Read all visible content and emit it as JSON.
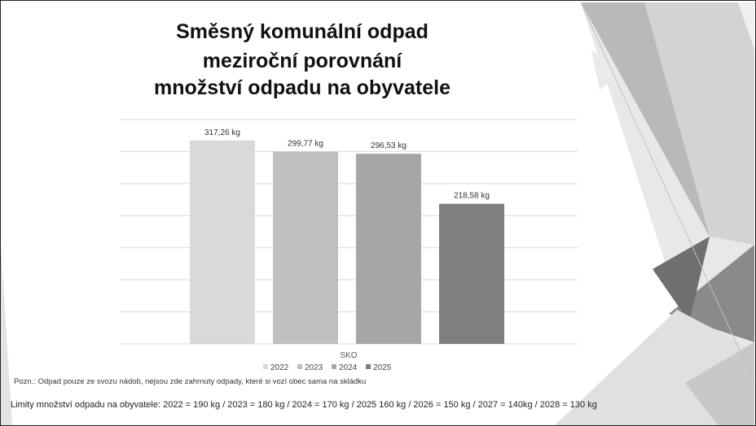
{
  "title_lines": [
    "Směsný komunální odpad",
    "meziroční porovnání",
    "množství odpadu na obyvatele"
  ],
  "colors": {
    "bar_2022": "#d9d9d9",
    "bar_2023": "#bfbfbf",
    "bar_2024": "#a6a6a6",
    "bar_2025": "#7f7f7f",
    "gridline": "#d9d9d9"
  },
  "chart_data": {
    "type": "bar",
    "xlabel": "SKO",
    "ylim": [
      0,
      350
    ],
    "grid": true,
    "legend_position": "bottom",
    "series": [
      {
        "name": "2022",
        "value": 317.26,
        "label": "317,26 kg"
      },
      {
        "name": "2023",
        "value": 299.77,
        "label": "299,77 kg"
      },
      {
        "name": "2024",
        "value": 296.53,
        "label": "296,53 kg"
      },
      {
        "name": "2025",
        "value": 218.58,
        "label": "218,58 kg"
      }
    ]
  },
  "note": "Pozn.: Odpad pouze ze svozu nádob, nejsou zde zahrnuty odpady, které si vozí obec sama na skládku",
  "limits": "Limity množství odpadu na obyvatele: 2022 = 190 kg  /  2023 = 180 kg  /  2024 = 170 kg  /  2025 160 kg  /  2026 = 150 kg  /  2027 = 140kg  /  2028 = 130 kg"
}
